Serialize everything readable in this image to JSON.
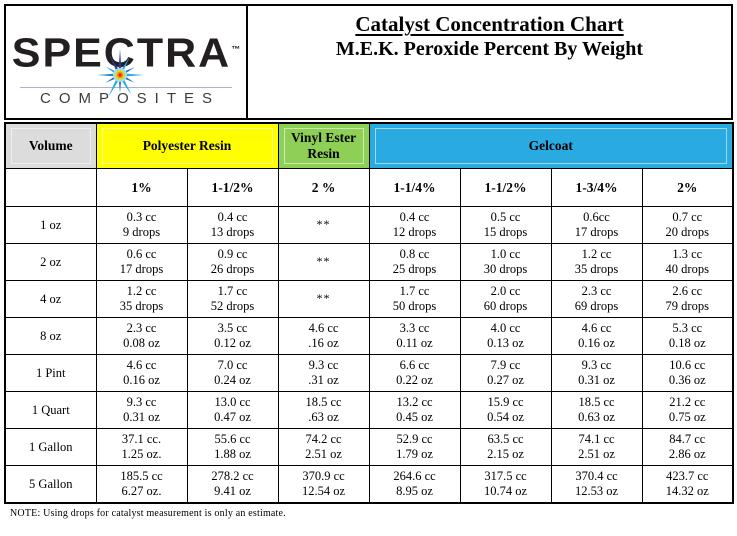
{
  "logo": {
    "brand": "SPECTRA",
    "trademark": "™",
    "subtitle": "COMPOSITES"
  },
  "header": {
    "title_line1": "Catalyst Concentration Chart",
    "title_line2": "M.E.K. Peroxide Percent By Weight"
  },
  "table": {
    "volume_header": "Volume",
    "volume_header_color": "#DCDCDC",
    "groups": [
      {
        "label": "Polyester Resin",
        "color": "#FFFF00",
        "span": 2
      },
      {
        "label": "Vinyl Ester Resin",
        "color": "#8DD055",
        "span": 1
      },
      {
        "label": "Gelcoat",
        "color": "#29ABE2",
        "span": 4
      }
    ],
    "percent_headers": [
      "1%",
      "1-1/2%",
      "2 %",
      "1-1/4%",
      "1-1/2%",
      "1-3/4%",
      "2%"
    ],
    "rows": [
      {
        "volume": "1 oz",
        "cells": [
          [
            "0.3 cc",
            "9 drops"
          ],
          [
            "0.4 cc",
            "13 drops"
          ],
          [
            "**"
          ],
          [
            "0.4 cc",
            "12 drops"
          ],
          [
            "0.5 cc",
            "15 drops"
          ],
          [
            "0.6cc",
            "17 drops"
          ],
          [
            "0.7 cc",
            "20 drops"
          ]
        ]
      },
      {
        "volume": "2 oz",
        "cells": [
          [
            "0.6 cc",
            "17 drops"
          ],
          [
            "0.9 cc",
            "26 drops"
          ],
          [
            "**"
          ],
          [
            "0.8 cc",
            "25 drops"
          ],
          [
            "1.0 cc",
            "30 drops"
          ],
          [
            "1.2 cc",
            "35 drops"
          ],
          [
            "1.3 cc",
            "40 drops"
          ]
        ]
      },
      {
        "volume": "4 oz",
        "cells": [
          [
            "1.2 cc",
            "35 drops"
          ],
          [
            "1.7 cc",
            "52 drops"
          ],
          [
            "**"
          ],
          [
            "1.7 cc",
            "50 drops"
          ],
          [
            "2.0 cc",
            "60 drops"
          ],
          [
            "2.3 cc",
            "69 drops"
          ],
          [
            "2.6 cc",
            "79 drops"
          ]
        ]
      },
      {
        "volume": "8 oz",
        "cells": [
          [
            "2.3 cc",
            "0.08 oz"
          ],
          [
            "3.5 cc",
            "0.12 oz"
          ],
          [
            "4.6 cc",
            ".16 oz"
          ],
          [
            "3.3 cc",
            "0.11 oz"
          ],
          [
            "4.0 cc",
            "0.13 oz"
          ],
          [
            "4.6 cc",
            "0.16 oz"
          ],
          [
            "5.3 cc",
            "0.18 oz"
          ]
        ]
      },
      {
        "volume": "1 Pint",
        "cells": [
          [
            "4.6 cc",
            "0.16 oz"
          ],
          [
            "7.0 cc",
            "0.24 oz"
          ],
          [
            "9.3 cc",
            ".31 oz"
          ],
          [
            "6.6 cc",
            "0.22 oz"
          ],
          [
            "7.9 cc",
            "0.27 oz"
          ],
          [
            "9.3 cc",
            "0.31 oz"
          ],
          [
            "10.6 cc",
            "0.36 oz"
          ]
        ]
      },
      {
        "volume": "1 Quart",
        "cells": [
          [
            "9.3 cc",
            "0.31 oz"
          ],
          [
            "13.0 cc",
            "0.47 oz"
          ],
          [
            "18.5 cc",
            ".63 oz"
          ],
          [
            "13.2 cc",
            "0.45 oz"
          ],
          [
            "15.9 cc",
            "0.54 oz"
          ],
          [
            "18.5 cc",
            "0.63 oz"
          ],
          [
            "21.2 cc",
            "0.75 oz"
          ]
        ]
      },
      {
        "volume": "1 Gallon",
        "cells": [
          [
            "37.1 cc.",
            "1.25 oz."
          ],
          [
            "55.6 cc",
            "1.88 oz"
          ],
          [
            "74.2 cc",
            "2.51 oz"
          ],
          [
            "52.9 cc",
            "1.79 oz"
          ],
          [
            "63.5 cc",
            "2.15 oz"
          ],
          [
            "74.1 cc",
            "2.51 oz"
          ],
          [
            "84.7 cc",
            "2.86 oz"
          ]
        ]
      },
      {
        "volume": "5 Gallon",
        "cells": [
          [
            "185.5 cc",
            "6.27 oz."
          ],
          [
            "278.2 cc",
            "9.41 oz"
          ],
          [
            "370.9 cc",
            "12.54 oz"
          ],
          [
            "264.6 cc",
            "8.95 oz"
          ],
          [
            "317.5 cc",
            "10.74 oz"
          ],
          [
            "370.4 cc",
            "12.53 oz"
          ],
          [
            "423.7 cc",
            "14.32 oz"
          ]
        ]
      }
    ]
  },
  "note": "NOTE:  Using drops for catalyst measurement is only an estimate.",
  "colors": {
    "border": "#000000",
    "background": "#FFFFFF",
    "star_dark_blue": "#2B3990",
    "star_blue": "#1B75BC",
    "star_cyan": "#27AAE1",
    "star_halo": "#A5DCF5",
    "star_yellow": "#D7DF23",
    "star_orange": "#F7941D",
    "star_red": "#ED1C24"
  }
}
